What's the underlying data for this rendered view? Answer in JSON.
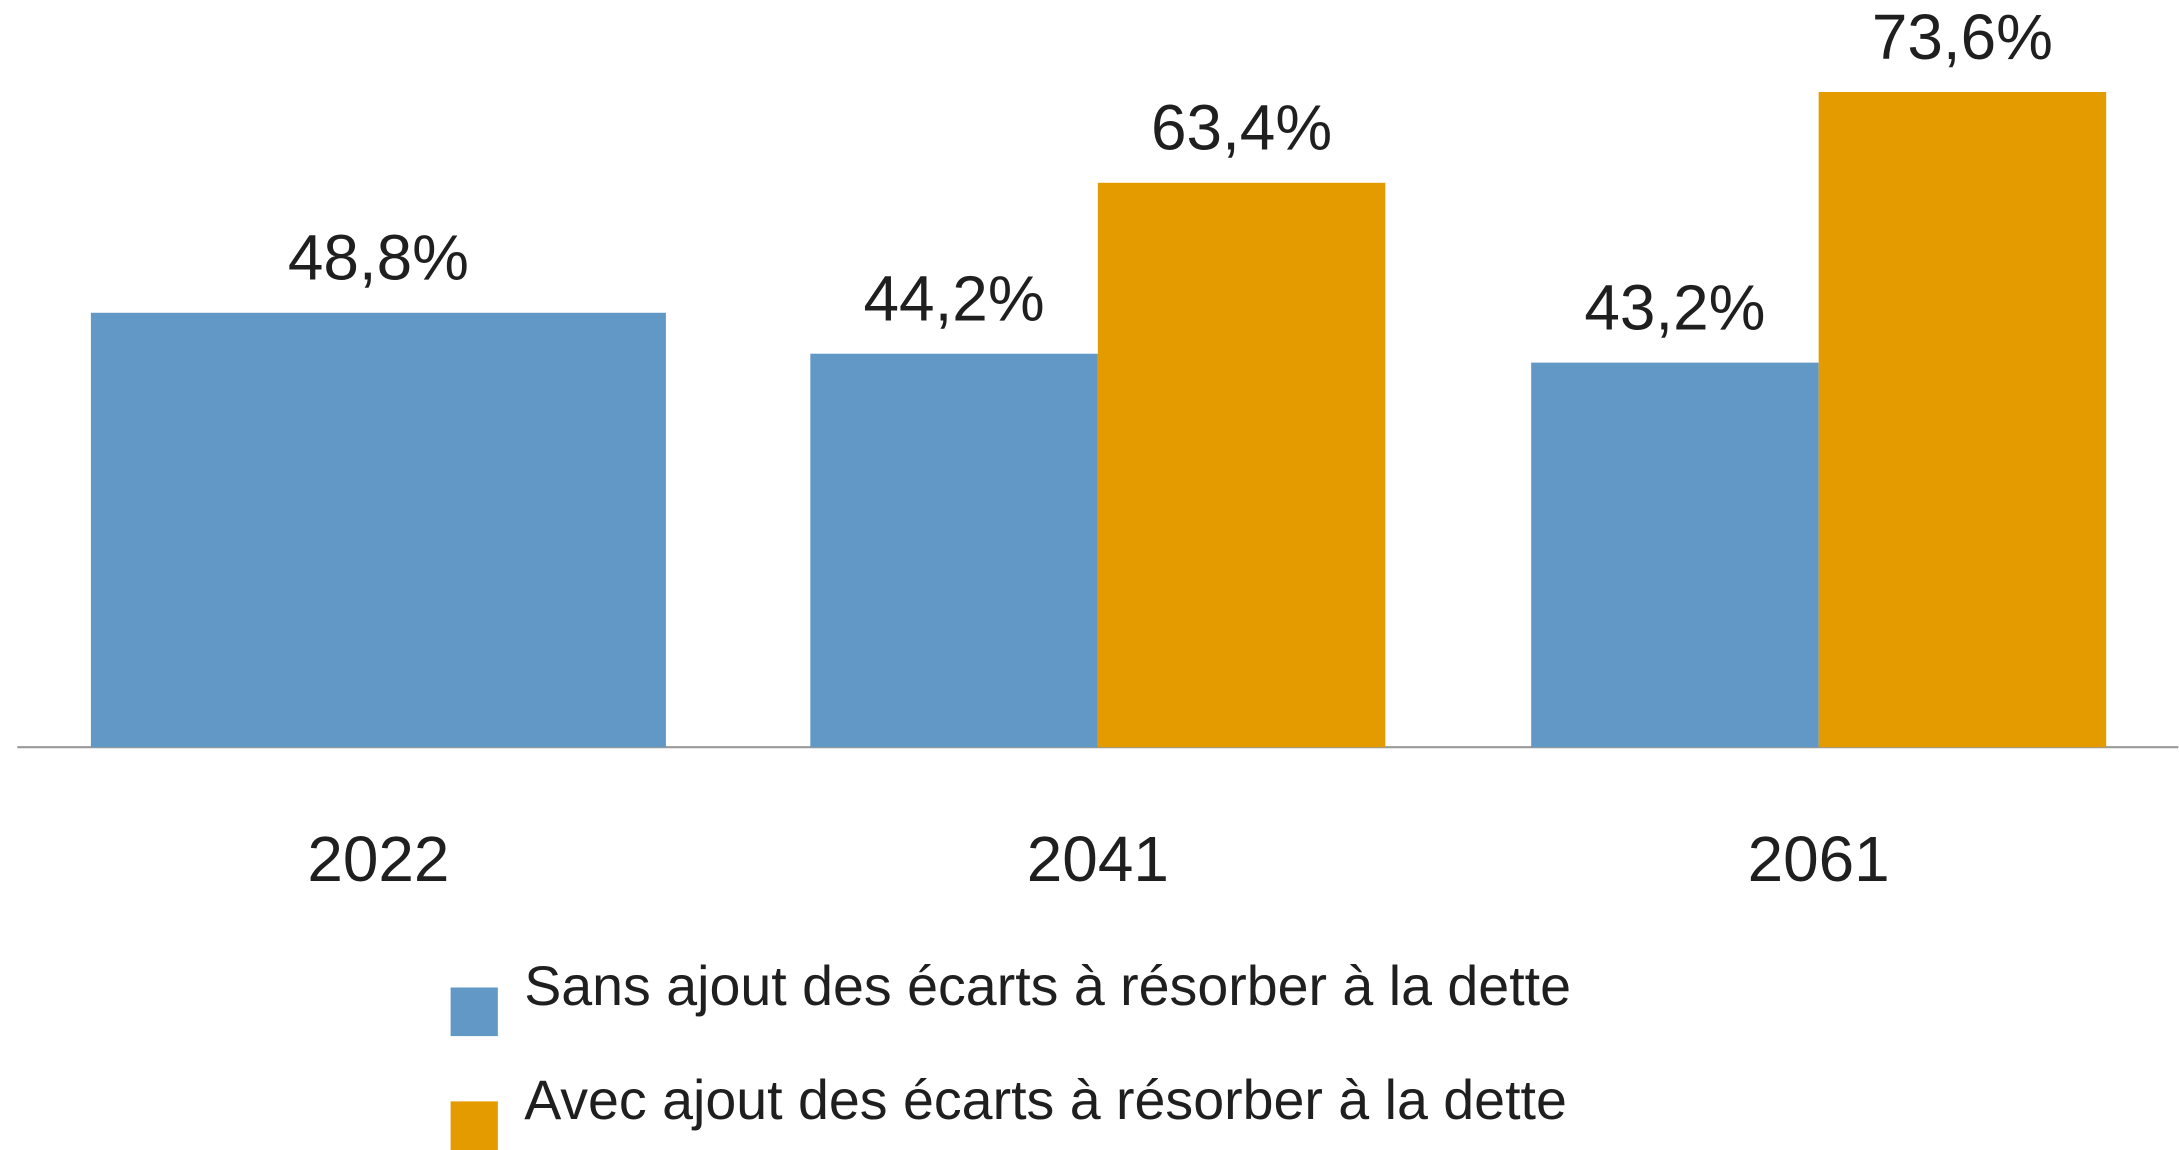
{
  "chart_data": {
    "type": "bar",
    "categories": [
      "2022",
      "2041",
      "2061"
    ],
    "series": [
      {
        "name": "Sans ajout des écarts à résorber à la dette",
        "color": "#6198c6",
        "values": [
          48.8,
          44.2,
          43.2
        ],
        "value_labels": [
          "48,8%",
          "44,2%",
          "43,2%"
        ]
      },
      {
        "name": "Avec ajout des écarts à résorber à la dette",
        "color": "#e39b00",
        "values": [
          null,
          63.4,
          73.6
        ],
        "value_labels": [
          null,
          "63,4%",
          "73,6%"
        ]
      }
    ]
  }
}
